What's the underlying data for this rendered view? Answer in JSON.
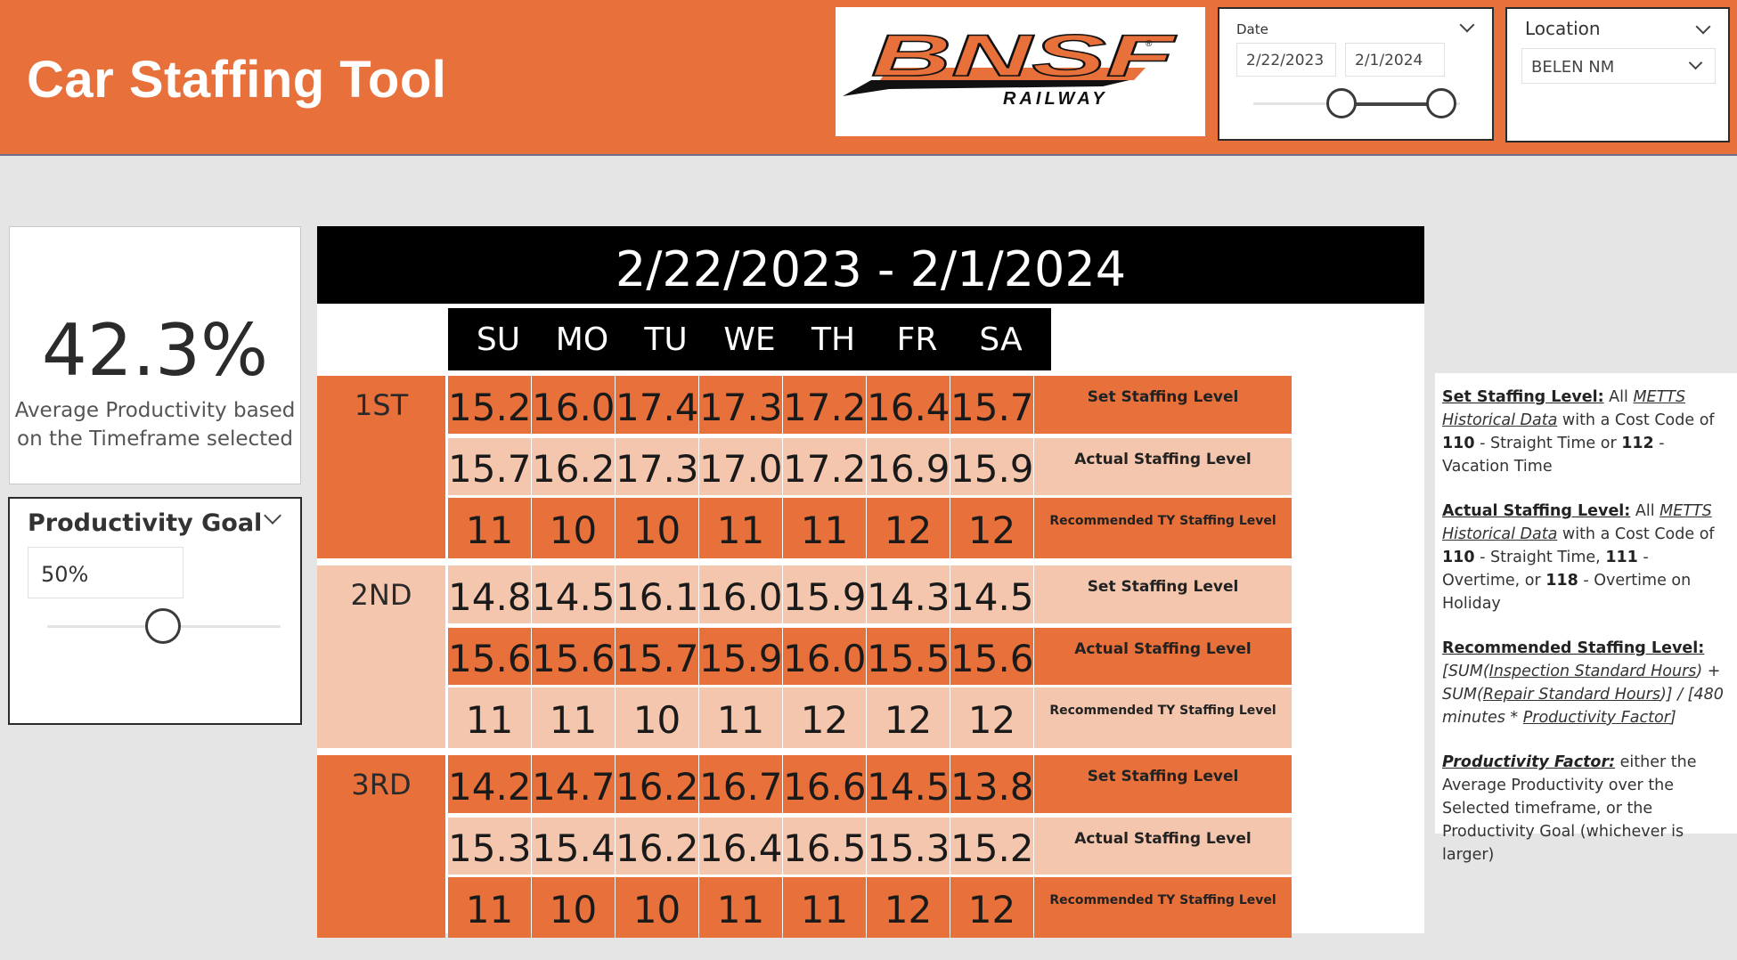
{
  "header": {
    "title": "Car Staffing Tool"
  },
  "logo": {
    "main_text": "BNSF",
    "sub_text": "RAILWAY",
    "registered": "®"
  },
  "date_slicer": {
    "label": "Date",
    "start": "2/22/2023",
    "end": "2/1/2024"
  },
  "location_slicer": {
    "label": "Location",
    "selected": "BELEN NM"
  },
  "kpi": {
    "value": "42.3%",
    "label_line1": "Average Productivity based",
    "label_line2": "on the Timeframe selected"
  },
  "goal": {
    "title": "Productivity Goal",
    "value": "50%",
    "slider_level": 0.5
  },
  "matrix": {
    "title": "2/22/2023 - 2/1/2024",
    "days": [
      "SU",
      "MO",
      "TU",
      "WE",
      "TH",
      "FR",
      "SA"
    ],
    "row_labels": [
      "Set Staffing Level",
      "Actual Staffing Level",
      "Recommended TY Staffing Level"
    ],
    "shifts": [
      {
        "name": "1ST",
        "rows": [
          [
            "15.2",
            "16.0",
            "17.4",
            "17.3",
            "17.2",
            "16.4",
            "15.7"
          ],
          [
            "15.7",
            "16.2",
            "17.3",
            "17.0",
            "17.2",
            "16.9",
            "15.9"
          ],
          [
            "11",
            "10",
            "10",
            "11",
            "11",
            "12",
            "12"
          ]
        ]
      },
      {
        "name": "2ND",
        "rows": [
          [
            "14.8",
            "14.5",
            "16.1",
            "16.0",
            "15.9",
            "14.3",
            "14.5"
          ],
          [
            "15.6",
            "15.6",
            "15.7",
            "15.9",
            "16.0",
            "15.5",
            "15.6"
          ],
          [
            "11",
            "11",
            "10",
            "11",
            "12",
            "12",
            "12"
          ]
        ]
      },
      {
        "name": "3RD",
        "rows": [
          [
            "14.2",
            "14.7",
            "16.2",
            "16.7",
            "16.6",
            "14.5",
            "13.8"
          ],
          [
            "15.3",
            "15.4",
            "16.2",
            "16.4",
            "16.5",
            "15.3",
            "15.2"
          ],
          [
            "11",
            "10",
            "10",
            "11",
            "11",
            "12",
            "12"
          ]
        ]
      }
    ]
  },
  "definitions": {
    "set": {
      "term": "Set Staffing Level:",
      "t1": " All ",
      "u1": "METTS Historical Data",
      "t2": " with a Cost Code of ",
      "b1": "110",
      "t3": " - Straight Time or ",
      "b2": "112",
      "t4": " - Vacation Time"
    },
    "actual": {
      "term": "Actual Staffing Level:",
      "t1": " All ",
      "u1": "METTS Historical Data",
      "t2": " with a Cost Code of ",
      "b1": "110",
      "t3": " - Straight Time, ",
      "b2": "111",
      "t4": " - Overtime, or ",
      "b3": "118",
      "t5": " - Overtime on Holiday"
    },
    "recommended": {
      "term": "Recommended Staffing Level:",
      "i1": " [SUM(",
      "u1": "Inspection Standard Hours",
      "i2": ") + SUM(",
      "u2": "Repair Standard Hours",
      "i3": ")] / [480 minutes * ",
      "u3": "Productivity Factor",
      "i4": "]"
    },
    "factor": {
      "term": "Productivity Factor:",
      "t1": " either the Average Productivity over the Selected timeframe, or the Productivity Goal (whichever is larger)"
    }
  }
}
